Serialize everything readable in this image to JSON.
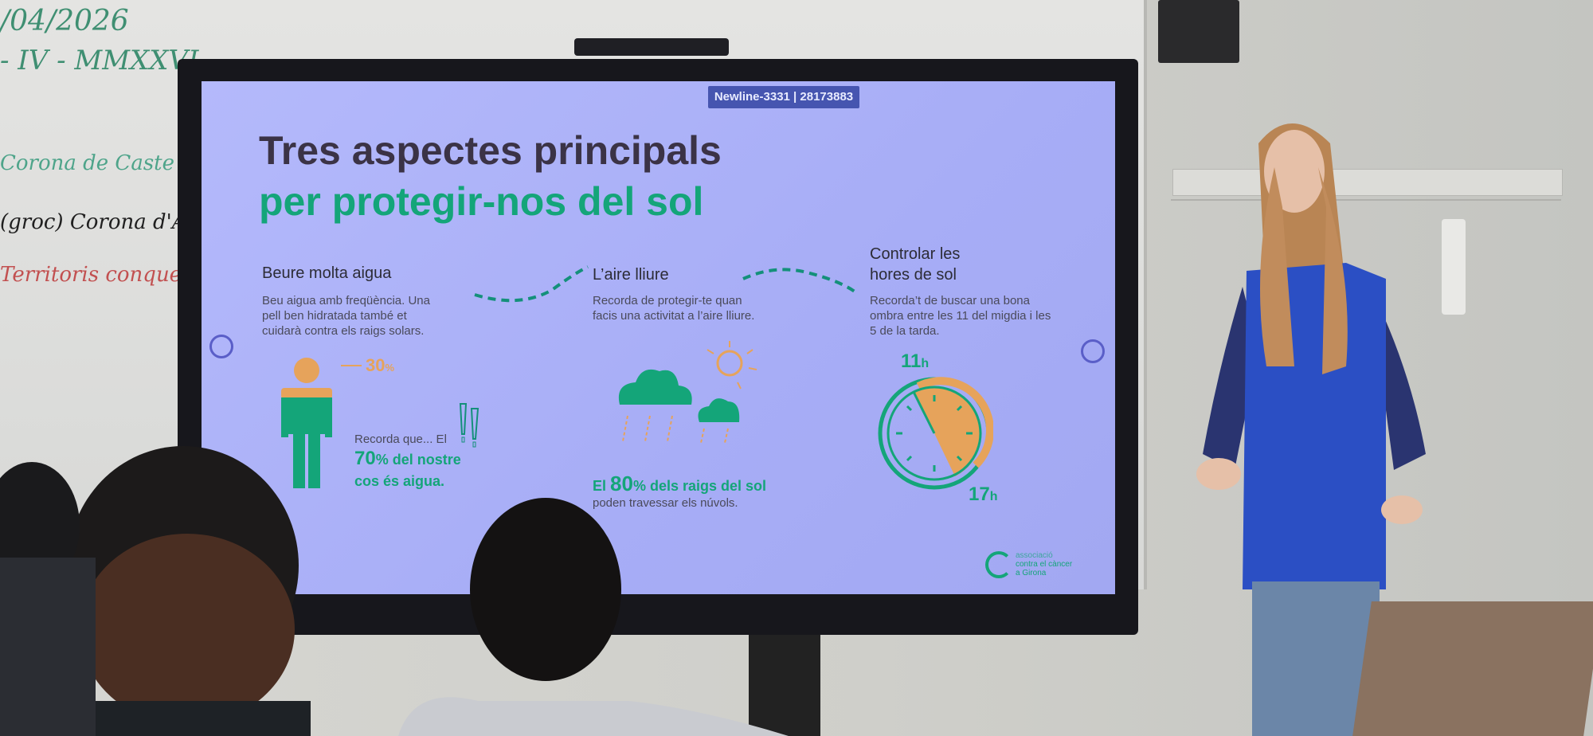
{
  "whiteboard": {
    "lines": [
      "/04/2026",
      "- IV - MMXXVI",
      "Corona de Caste",
      "(groc) Corona d'A",
      "Territoris conquer"
    ]
  },
  "monitor": {
    "badge": "Newline-3331 | 28173883"
  },
  "slide": {
    "title_line1": "Tres aspectes principals",
    "title_line2": "per protegir-nos del sol",
    "columns": [
      {
        "heading": "Beure molta aigua",
        "body": [
          "Beu aigua amb freqüència. Una",
          "pell ben hidratada també et",
          "cuidarà contra els raigs solars."
        ],
        "stat_small": "30",
        "stat_small_unit": "%",
        "note_prefix": "Recorda que... El",
        "note_value": "70",
        "note_unit": "%",
        "note_rest": "del nostre",
        "note_line3": "cos és aigua."
      },
      {
        "heading": "L’aire lliure",
        "body": [
          "Recorda de protegir-te quan",
          "facis una activitat a l’aire lliure."
        ],
        "stat_prefix": "El",
        "stat_value": "80",
        "stat_unit": "%",
        "stat_rest": "dels raigs del sol",
        "stat_line2": "poden travessar els núvols."
      },
      {
        "heading_line1": "Controlar les",
        "heading_line2": "hores de sol",
        "body": [
          "Recorda’t de buscar una bona",
          "ombra entre les 11 del migdia i les",
          "5 de la tarda."
        ],
        "clock_start": "11",
        "clock_end": "17",
        "hour_unit": "h"
      }
    ],
    "logo": {
      "line1": "associació",
      "line2": "contra el càncer",
      "line3": "a Girona"
    }
  },
  "colors": {
    "green": "#14a579",
    "orange": "#e6a35b",
    "slide_bg": "#b4b9fb",
    "vest": "#2b4fc4"
  }
}
